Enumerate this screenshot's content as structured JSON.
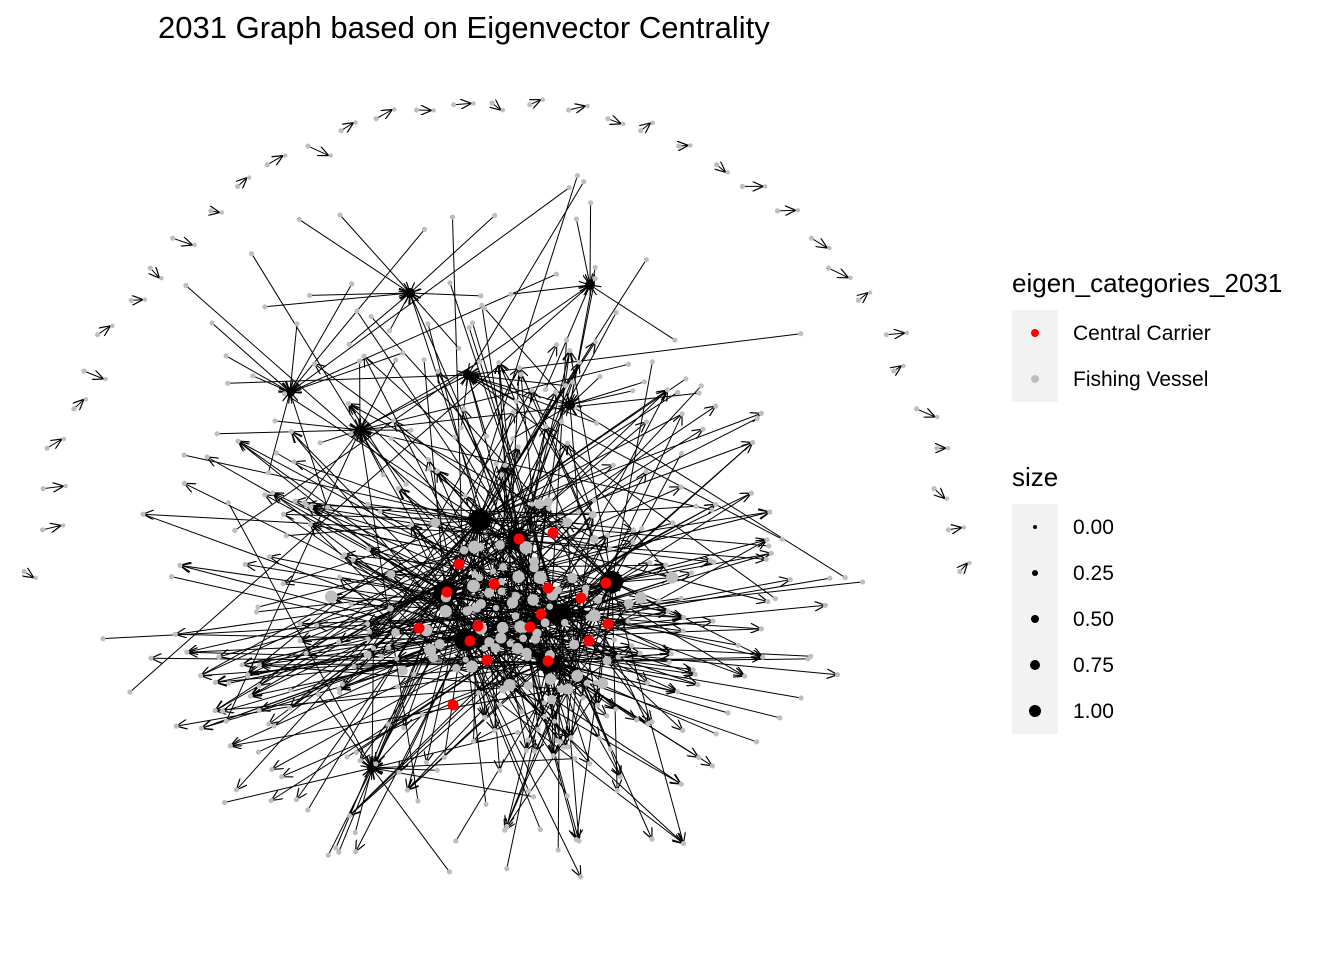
{
  "title": "2031 Graph based on Eigenvector Centrality",
  "legend_color": {
    "title": "eigen_categories_2031",
    "entries": [
      {
        "label": "Central Carrier",
        "color": "#ff0000"
      },
      {
        "label": "Fishing Vessel",
        "color": "#bebebe"
      }
    ]
  },
  "legend_size": {
    "title": "size",
    "entries": [
      {
        "label": "0.00",
        "value": 0.0
      },
      {
        "label": "0.25",
        "value": 0.25
      },
      {
        "label": "0.50",
        "value": 0.5
      },
      {
        "label": "0.75",
        "value": 0.75
      },
      {
        "label": "1.00",
        "value": 1.0
      }
    ]
  },
  "colors": {
    "edge": "#000000",
    "central": "#ff0000",
    "fishing": "#bebebe"
  }
}
